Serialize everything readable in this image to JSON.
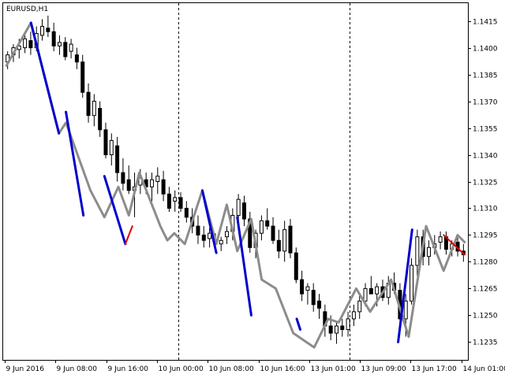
{
  "chart_data": {
    "type": "candlestick",
    "title": "EURUSD,H1",
    "ylim": [
      1.1225,
      1.1425
    ],
    "ygrid": false,
    "y_ticks": [
      "1.1415",
      "1.1400",
      "1.1385",
      "1.1370",
      "1.1355",
      "1.1340",
      "1.1325",
      "1.1310",
      "1.1295",
      "1.1280",
      "1.1265",
      "1.1250",
      "1.1235"
    ],
    "x_ticks": [
      "9 Jun 2016",
      "9 Jun 08:00",
      "9 Jun 16:00",
      "10 Jun 00:00",
      "10 Jun 08:00",
      "10 Jun 16:00",
      "13 Jun 01:00",
      "13 Jun 09:00",
      "13 Jun 17:00",
      "14 Jun 01:00"
    ],
    "session_separators": [
      "10 Jun 00:00",
      "13 Jun 01:00",
      "14 Jun 01:00"
    ],
    "colors": {
      "bull_candle": "#ffffff",
      "bear_candle": "#000000",
      "candle_outline": "#000000",
      "zigzag_gray": "#8c8c8c",
      "zigzag_blue": "#0000cc",
      "zigzag_red": "#e00000",
      "separator": "#000000"
    },
    "candles": [
      [
        1.1392,
        1.1398,
        1.1388,
        1.1396
      ],
      [
        1.1396,
        1.1402,
        1.1392,
        1.14
      ],
      [
        1.1399,
        1.1405,
        1.1394,
        1.1401
      ],
      [
        1.14,
        1.1408,
        1.1397,
        1.1405
      ],
      [
        1.1404,
        1.1409,
        1.1396,
        1.14
      ],
      [
        1.14,
        1.1412,
        1.1398,
        1.1408
      ],
      [
        1.1407,
        1.1416,
        1.1404,
        1.1412
      ],
      [
        1.1411,
        1.1418,
        1.1406,
        1.1409
      ],
      [
        1.1409,
        1.1414,
        1.1398,
        1.1401
      ],
      [
        1.1401,
        1.1407,
        1.1396,
        1.1403
      ],
      [
        1.1403,
        1.1406,
        1.1393,
        1.1395
      ],
      [
        1.1398,
        1.1405,
        1.1394,
        1.1402
      ],
      [
        1.1396,
        1.14,
        1.1388,
        1.1392
      ],
      [
        1.1392,
        1.1396,
        1.1372,
        1.1375
      ],
      [
        1.1375,
        1.138,
        1.1358,
        1.1362
      ],
      [
        1.1362,
        1.1374,
        1.1356,
        1.137
      ],
      [
        1.1366,
        1.137,
        1.135,
        1.1354
      ],
      [
        1.1354,
        1.1358,
        1.1338,
        1.134
      ],
      [
        1.134,
        1.1352,
        1.1334,
        1.1348
      ],
      [
        1.1345,
        1.135,
        1.1325,
        1.133
      ],
      [
        1.133,
        1.1338,
        1.132,
        1.1324
      ],
      [
        1.1326,
        1.1334,
        1.1318,
        1.132
      ],
      [
        1.132,
        1.133,
        1.1305,
        1.1322
      ],
      [
        1.1323,
        1.1332,
        1.1318,
        1.1327
      ],
      [
        1.1326,
        1.133,
        1.1318,
        1.1322
      ],
      [
        1.1322,
        1.133,
        1.1314,
        1.1326
      ],
      [
        1.1325,
        1.1333,
        1.1318,
        1.1328
      ],
      [
        1.1326,
        1.1331,
        1.1314,
        1.1318
      ],
      [
        1.1318,
        1.1322,
        1.1308,
        1.131
      ],
      [
        1.1314,
        1.132,
        1.1308,
        1.1316
      ],
      [
        1.1316,
        1.1319,
        1.1308,
        1.131
      ],
      [
        1.131,
        1.1314,
        1.1302,
        1.1305
      ],
      [
        1.1305,
        1.131,
        1.1296,
        1.13
      ],
      [
        1.13,
        1.1306,
        1.129,
        1.1295
      ],
      [
        1.1295,
        1.13,
        1.1288,
        1.1292
      ],
      [
        1.1293,
        1.1299,
        1.1288,
        1.1296
      ],
      [
        1.1292,
        1.1296,
        1.1287,
        1.129
      ],
      [
        1.129,
        1.1294,
        1.1286,
        1.1292
      ],
      [
        1.1294,
        1.13,
        1.129,
        1.1297
      ],
      [
        1.1297,
        1.131,
        1.1292,
        1.1306
      ],
      [
        1.1306,
        1.1318,
        1.1302,
        1.1315
      ],
      [
        1.1313,
        1.1317,
        1.13,
        1.1304
      ],
      [
        1.1304,
        1.1308,
        1.1285,
        1.1288
      ],
      [
        1.1288,
        1.1298,
        1.1282,
        1.1296
      ],
      [
        1.1296,
        1.1306,
        1.1292,
        1.1303
      ],
      [
        1.1303,
        1.131,
        1.1298,
        1.13
      ],
      [
        1.13,
        1.1305,
        1.129,
        1.1292
      ],
      [
        1.1292,
        1.1298,
        1.1282,
        1.1286
      ],
      [
        1.1286,
        1.1303,
        1.128,
        1.1298
      ],
      [
        1.13,
        1.1304,
        1.1282,
        1.1285
      ],
      [
        1.1285,
        1.1288,
        1.1268,
        1.127
      ],
      [
        1.127,
        1.1275,
        1.1258,
        1.1262
      ],
      [
        1.1264,
        1.1268,
        1.1256,
        1.1266
      ],
      [
        1.1264,
        1.1268,
        1.1252,
        1.1256
      ],
      [
        1.1258,
        1.1262,
        1.1248,
        1.1254
      ],
      [
        1.1252,
        1.1256,
        1.1238,
        1.1244
      ],
      [
        1.1244,
        1.125,
        1.1236,
        1.124
      ],
      [
        1.124,
        1.1246,
        1.1234,
        1.1244
      ],
      [
        1.1244,
        1.1248,
        1.1238,
        1.1242
      ],
      [
        1.1242,
        1.1252,
        1.1238,
        1.1248
      ],
      [
        1.1248,
        1.1256,
        1.1244,
        1.1252
      ],
      [
        1.1252,
        1.1262,
        1.1248,
        1.1258
      ],
      [
        1.1258,
        1.1268,
        1.1255,
        1.1265
      ],
      [
        1.1265,
        1.1272,
        1.1262,
        1.1262
      ],
      [
        1.1262,
        1.1268,
        1.1255,
        1.1266
      ],
      [
        1.1266,
        1.127,
        1.1258,
        1.126
      ],
      [
        1.126,
        1.1272,
        1.1256,
        1.1268
      ],
      [
        1.1268,
        1.1274,
        1.1262,
        1.1264
      ],
      [
        1.1264,
        1.1268,
        1.1244,
        1.1248
      ],
      [
        1.1248,
        1.1262,
        1.1238,
        1.1258
      ],
      [
        1.1258,
        1.1282,
        1.1256,
        1.1278
      ],
      [
        1.1278,
        1.1298,
        1.1272,
        1.1294
      ],
      [
        1.1294,
        1.1298,
        1.1278,
        1.1283
      ],
      [
        1.1283,
        1.1292,
        1.1278,
        1.1288
      ],
      [
        1.1288,
        1.1295,
        1.1284,
        1.129
      ],
      [
        1.1291,
        1.1297,
        1.1287,
        1.1294
      ],
      [
        1.1294,
        1.1297,
        1.1284,
        1.1287
      ],
      [
        1.1287,
        1.1292,
        1.1283,
        1.129
      ],
      [
        1.1291,
        1.1295,
        1.1283,
        1.1286
      ],
      [
        1.1286,
        1.129,
        1.128,
        1.1284
      ]
    ],
    "zigzag_gray": [
      [
        0,
        1.139
      ],
      [
        7,
        1.1414
      ],
      [
        15,
        1.1352
      ],
      [
        17,
        1.1358
      ],
      [
        24,
        1.132
      ],
      [
        28,
        1.1305
      ],
      [
        32,
        1.1322
      ],
      [
        35,
        1.1306
      ],
      [
        38,
        1.133
      ],
      [
        44,
        1.13
      ],
      [
        46,
        1.1292
      ],
      [
        48,
        1.1296
      ],
      [
        51,
        1.129
      ],
      [
        56,
        1.132
      ],
      [
        60,
        1.129
      ],
      [
        63,
        1.1312
      ],
      [
        66,
        1.1286
      ],
      [
        70,
        1.1304
      ],
      [
        73,
        1.127
      ],
      [
        77,
        1.1265
      ],
      [
        82,
        1.124
      ],
      [
        88,
        1.1232
      ],
      [
        92,
        1.1248
      ],
      [
        95,
        1.1246
      ],
      [
        100,
        1.1265
      ],
      [
        104,
        1.1252
      ],
      [
        110,
        1.127
      ],
      [
        115,
        1.1238
      ],
      [
        120,
        1.13
      ],
      [
        125,
        1.1275
      ],
      [
        129,
        1.1295
      ],
      [
        131,
        1.1291
      ]
    ],
    "zigzag_blue": [
      [
        7,
        1.1414
      ],
      [
        15,
        1.1352
      ],
      [
        17,
        1.1364
      ],
      [
        22,
        1.1306
      ],
      [
        28,
        1.1328
      ],
      [
        34,
        1.129
      ],
      [
        56,
        1.132
      ],
      [
        60,
        1.1285
      ],
      [
        66,
        1.1305
      ],
      [
        70,
        1.125
      ],
      [
        83,
        1.1248
      ],
      [
        84,
        1.1242
      ],
      [
        112,
        1.1235
      ],
      [
        116,
        1.1298
      ]
    ],
    "zigzag_red": [
      [
        34,
        1.129
      ],
      [
        36,
        1.13
      ],
      [
        125,
        1.1295
      ],
      [
        131,
        1.1284
      ]
    ]
  }
}
